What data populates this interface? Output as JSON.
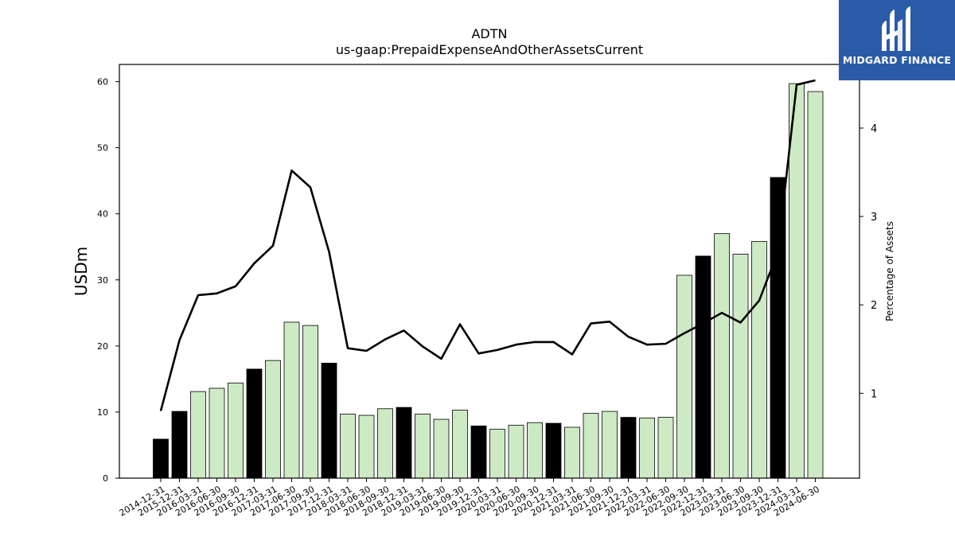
{
  "chart_data": {
    "type": "bar+line",
    "title": "ADTN",
    "subtitle": "us-gaap:PrepaidExpenseAndOtherAssetsCurrent",
    "ylabel_left": "USDm",
    "ylabel_right": "Percentage of Assets",
    "ylim_left": [
      0,
      62.6
    ],
    "ylim_right": [
      0.04,
      4.72
    ],
    "yticks_left": [
      "0",
      "10",
      "20",
      "30",
      "40",
      "50",
      "60"
    ],
    "yticks_right": [
      "1",
      "2",
      "3",
      "4"
    ],
    "categories": [
      "2014-12-31",
      "2015-12-31",
      "2016-03-31",
      "2016-06-30",
      "2016-09-30",
      "2016-12-31",
      "2017-03-31",
      "2017-06-30",
      "2017-09-30",
      "2017-12-31",
      "2018-03-31",
      "2018-06-30",
      "2018-09-30",
      "2018-12-31",
      "2019-03-31",
      "2019-06-30",
      "2019-09-30",
      "2019-12-31",
      "2020-03-31",
      "2020-06-30",
      "2020-09-30",
      "2020-12-31",
      "2021-03-31",
      "2021-06-30",
      "2021-09-30",
      "2021-12-31",
      "2022-03-31",
      "2022-06-30",
      "2022-09-30",
      "2022-12-31",
      "2023-03-31",
      "2023-06-30",
      "2023-09-30",
      "2023-12-31",
      "2024-03-31",
      "2024-06-30"
    ],
    "series": [
      {
        "type": "bar",
        "values": [
          5.9,
          10.1,
          13.1,
          13.6,
          14.4,
          16.5,
          17.8,
          23.6,
          23.1,
          17.4,
          9.7,
          9.5,
          10.5,
          10.7,
          9.7,
          8.9,
          10.3,
          7.9,
          7.4,
          8.0,
          8.4,
          8.3,
          7.7,
          9.8,
          10.1,
          9.2,
          9.1,
          9.2,
          30.7,
          33.6,
          37.0,
          33.9,
          35.8,
          45.5,
          59.7,
          58.5
        ],
        "year_end_highlight": [
          true,
          true,
          false,
          false,
          false,
          true,
          false,
          false,
          false,
          true,
          false,
          false,
          false,
          true,
          false,
          false,
          false,
          true,
          false,
          false,
          false,
          true,
          false,
          false,
          false,
          true,
          false,
          false,
          false,
          true,
          false,
          false,
          false,
          true,
          false,
          false
        ]
      },
      {
        "type": "line",
        "axis": "right",
        "values": [
          0.8,
          1.6,
          2.11,
          2.13,
          2.21,
          2.47,
          2.67,
          3.52,
          3.33,
          2.6,
          1.51,
          1.48,
          1.61,
          1.71,
          1.53,
          1.39,
          1.78,
          1.45,
          1.49,
          1.55,
          1.58,
          1.58,
          1.44,
          1.79,
          1.81,
          1.64,
          1.55,
          1.56,
          1.68,
          1.79,
          1.91,
          1.8,
          2.05,
          2.6,
          4.49,
          4.54
        ]
      }
    ],
    "colors": {
      "bar_year_end": "#000000",
      "bar_other": "#cdeac5",
      "bar_edge": "#000000",
      "line": "#000000"
    },
    "grid": false
  },
  "branding": {
    "logo_text": "MIDGARD FINANCE",
    "logo_color": "#2b5ba8"
  }
}
